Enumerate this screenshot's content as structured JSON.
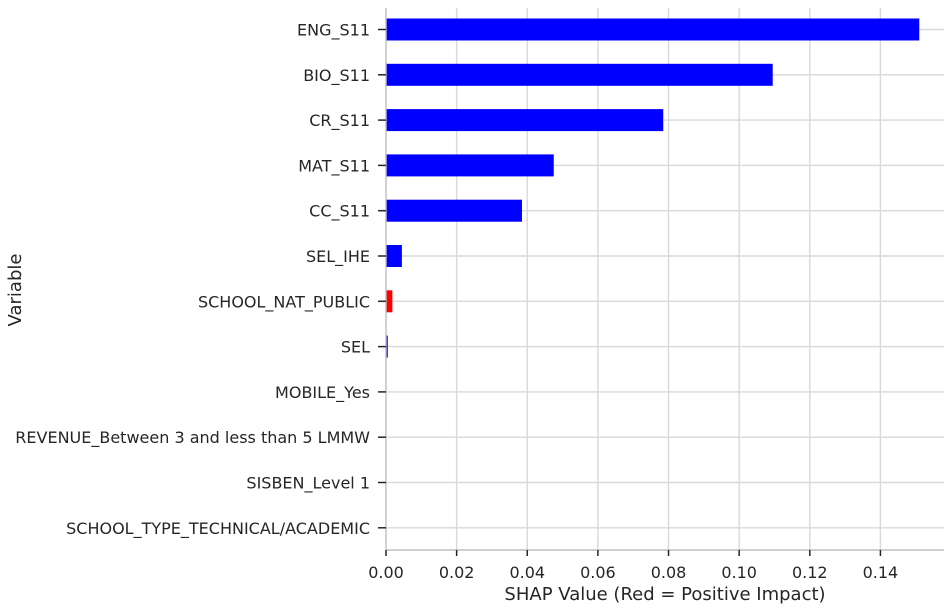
{
  "chart_data": {
    "type": "bar",
    "orientation": "horizontal",
    "title": "",
    "xlabel": "SHAP Value (Red = Positive Impact)",
    "ylabel": "Variable",
    "xlim": [
      0,
      0.158
    ],
    "xticks": [
      "0.00",
      "0.02",
      "0.04",
      "0.06",
      "0.08",
      "0.10",
      "0.12",
      "0.14"
    ],
    "grid": true,
    "categories": [
      "ENG_S11",
      "BIO_S11",
      "CR_S11",
      "MAT_S11",
      "CC_S11",
      "SEL_IHE",
      "SCHOOL_NAT_PUBLIC",
      "SEL",
      "MOBILE_Yes",
      "REVENUE_Between 3 and less than 5 LMMW",
      "SISBEN_Level 1",
      "SCHOOL_TYPE_TECHNICAL/ACADEMIC"
    ],
    "values": [
      0.151,
      0.1095,
      0.0785,
      0.0475,
      0.0385,
      0.0045,
      0.0018,
      0.0005,
      0.0,
      0.0,
      0.0,
      0.0
    ],
    "colors": [
      "#0000ff",
      "#0000ff",
      "#0000ff",
      "#0000ff",
      "#0000ff",
      "#0000ff",
      "#ff0000",
      "#0000ff",
      "#0000ff",
      "#0000ff",
      "#0000ff",
      "#0000ff"
    ]
  }
}
